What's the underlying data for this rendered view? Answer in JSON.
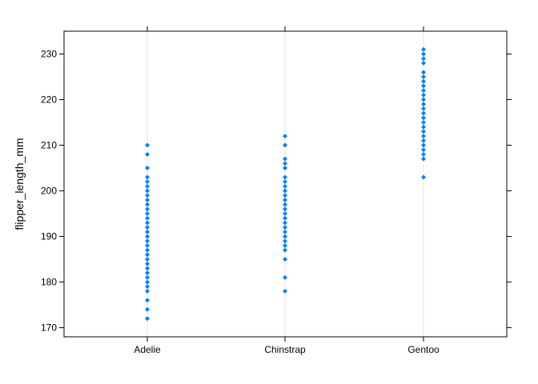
{
  "chart_data": {
    "type": "scatter",
    "title": "",
    "xlabel": "",
    "ylabel": "flipper_length_mm",
    "categories": [
      "Adelie",
      "Chinstrap",
      "Gentoo"
    ],
    "yticks": [
      170,
      180,
      190,
      200,
      210,
      220,
      230
    ],
    "ylim": [
      168,
      235
    ],
    "grid": "vertical lines at categories",
    "legend": "none",
    "point_color": "#0080FF",
    "series": [
      {
        "category": "Adelie",
        "values": [
          172,
          174,
          176,
          178,
          179,
          180,
          181,
          182,
          183,
          184,
          185,
          186,
          187,
          188,
          189,
          190,
          191,
          192,
          193,
          194,
          195,
          196,
          197,
          198,
          199,
          200,
          201,
          202,
          203,
          205,
          208,
          210
        ]
      },
      {
        "category": "Chinstrap",
        "values": [
          178,
          181,
          185,
          187,
          188,
          189,
          190,
          191,
          192,
          193,
          194,
          195,
          196,
          197,
          198,
          199,
          200,
          201,
          202,
          203,
          205,
          206,
          207,
          210,
          212
        ]
      },
      {
        "category": "Gentoo",
        "values": [
          203,
          207,
          208,
          209,
          210,
          211,
          212,
          213,
          214,
          215,
          216,
          217,
          218,
          219,
          220,
          221,
          222,
          223,
          224,
          225,
          226,
          228,
          229,
          230,
          231
        ]
      }
    ]
  }
}
